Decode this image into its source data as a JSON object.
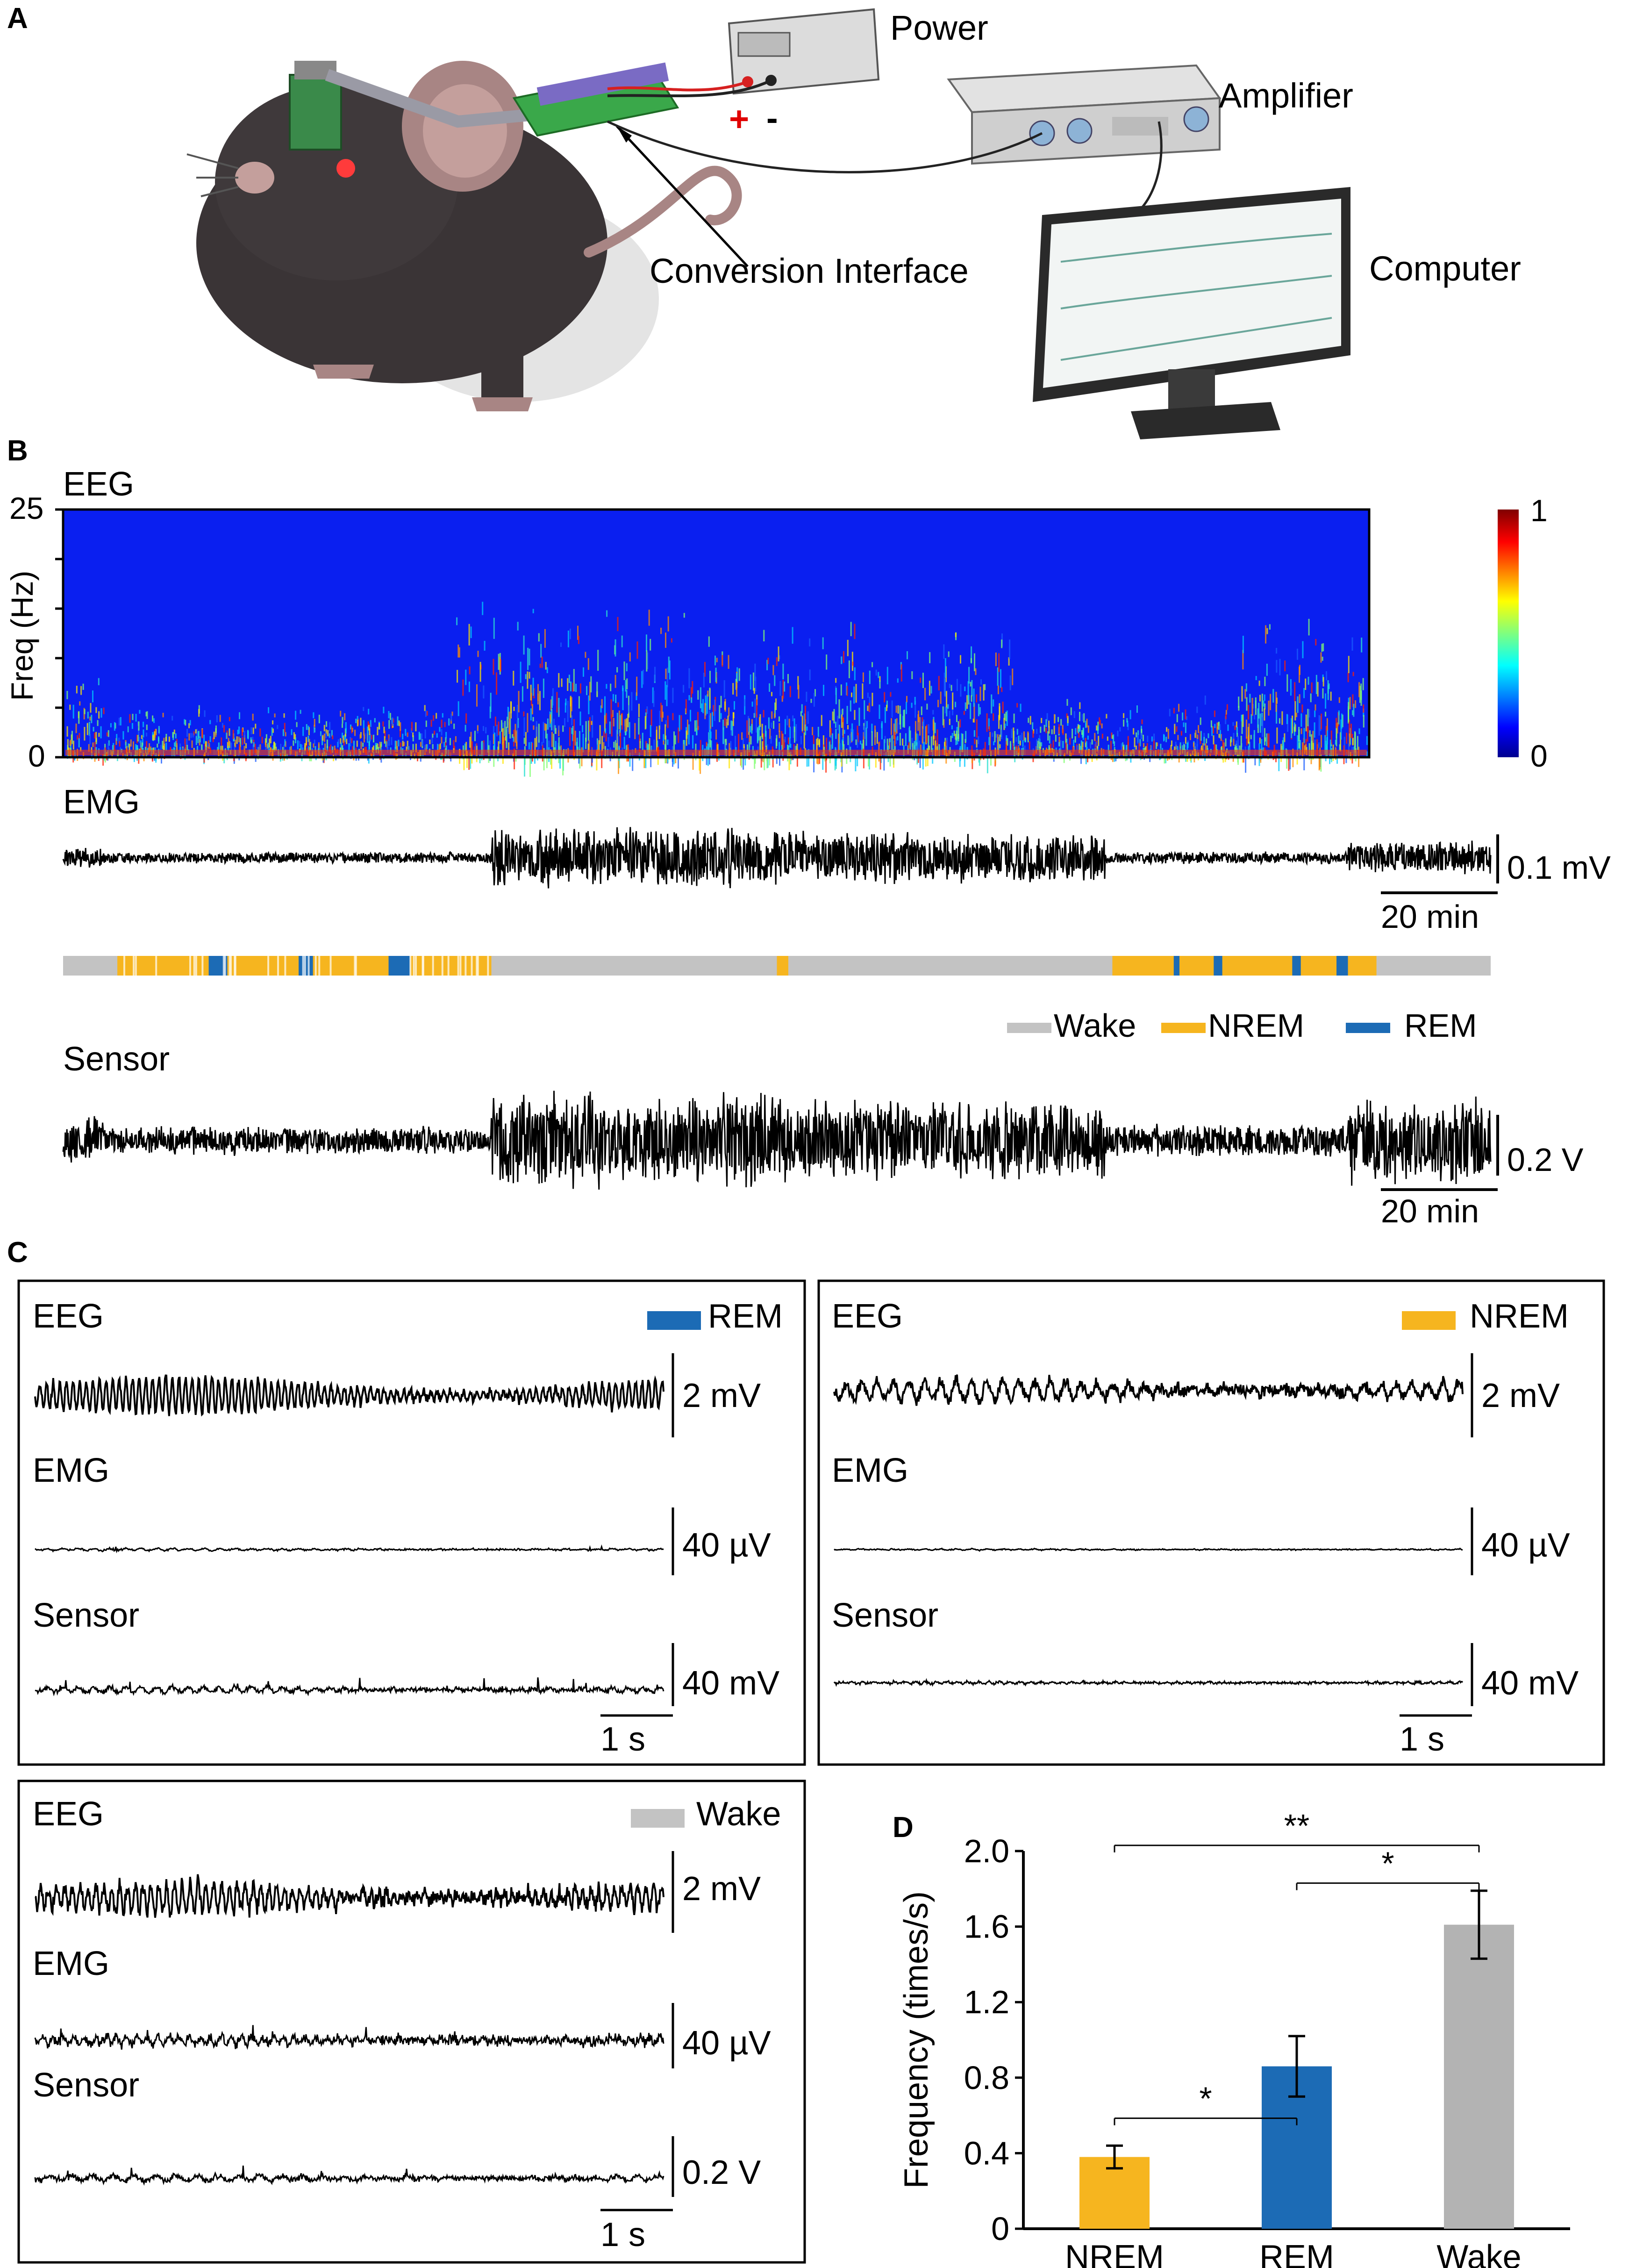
{
  "panel_labels": {
    "a": "A",
    "b": "B",
    "c": "C",
    "d": "D"
  },
  "panel_a": {
    "labels": {
      "power": "Power",
      "amplifier": "Amplifier",
      "conversion_interface": "Conversion Interface",
      "computer": "Computer",
      "plus": "+",
      "minus": "-"
    }
  },
  "panel_b": {
    "eeg_title": "EEG",
    "spectrogram": {
      "y_label": "Freq (Hz)",
      "y_ticks": [
        "25",
        "0"
      ],
      "colorbar_ticks": [
        "1",
        "0"
      ]
    },
    "emg_title": "EMG",
    "emg_scale": "0.1 mV",
    "emg_time_scale": "20 min",
    "legend": [
      "Wake",
      "NREM",
      "REM"
    ],
    "sensor_title": "Sensor",
    "sensor_scale": "0.2 V",
    "sensor_time_scale": "20 min",
    "colors": {
      "wake": "#c3c3c3",
      "nrem": "#f6b51f",
      "rem": "#1c6bb5"
    }
  },
  "panel_c": {
    "rem": {
      "state": "REM",
      "eeg": "EEG",
      "eeg_scale": "2 mV",
      "emg": "EMG",
      "emg_scale": "40 µV",
      "sensor": "Sensor",
      "sensor_scale": "40 mV",
      "time_scale": "1 s"
    },
    "nrem": {
      "state": "NREM",
      "eeg": "EEG",
      "eeg_scale": "2 mV",
      "emg": "EMG",
      "emg_scale": "40 µV",
      "sensor": "Sensor",
      "sensor_scale": "40 mV",
      "time_scale": "1 s"
    },
    "wake": {
      "state": "Wake",
      "eeg": "EEG",
      "eeg_scale": "2 mV",
      "emg": "EMG",
      "emg_scale": "40 µV",
      "sensor": "Sensor",
      "sensor_scale": "0.2 V",
      "time_scale": "1 s"
    }
  },
  "chart_data": {
    "type": "bar",
    "categories": [
      "NREM",
      "REM",
      "Wake"
    ],
    "values": [
      0.38,
      0.86,
      1.61
    ],
    "errors": [
      0.06,
      0.16,
      0.18
    ],
    "colors": [
      "#f6b51f",
      "#1c6bb5",
      "#b3b3b3"
    ],
    "ylabel": "Frequency (times/s)",
    "ylim": [
      0,
      2.0
    ],
    "yticks": [
      "0",
      "0.4",
      "0.8",
      "1.2",
      "1.6",
      "2.0"
    ],
    "significance": [
      {
        "from": "NREM",
        "to": "REM",
        "label": "*"
      },
      {
        "from": "REM",
        "to": "Wake",
        "label": "*"
      },
      {
        "from": "NREM",
        "to": "Wake",
        "label": "**"
      }
    ]
  }
}
